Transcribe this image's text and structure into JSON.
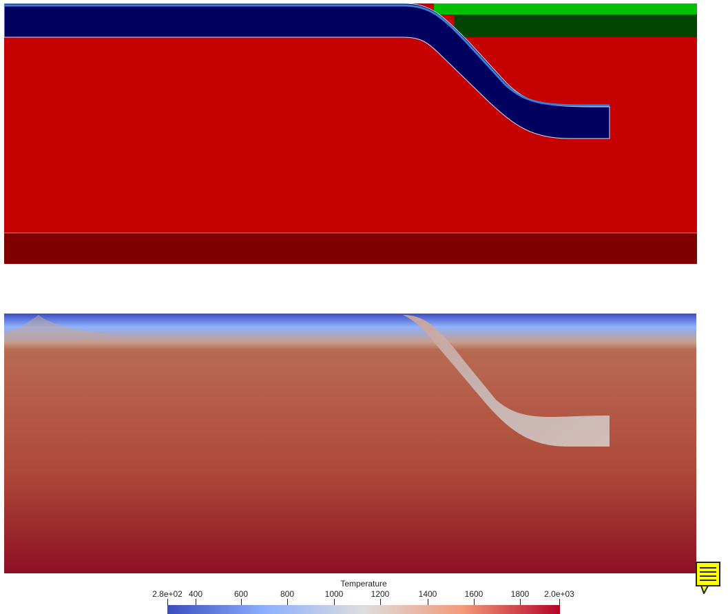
{
  "colorbar": {
    "title": "Temperature",
    "ticks": [
      "2.8e+02",
      "400",
      "600",
      "800",
      "1000",
      "1200",
      "1400",
      "1600",
      "1800",
      "2.0e+03"
    ],
    "range": [
      280,
      2000
    ],
    "colormap": [
      "#3b4cc0",
      "#8db0fe",
      "#dddddd",
      "#f49a7b",
      "#b40426"
    ]
  },
  "material_colors": {
    "crust_top": "#00c000",
    "overriding_plate": "#004400",
    "slab": "#00005f",
    "mantle": "#c40000",
    "lower_mantle": "#800000",
    "slab_edge": "#3a7fd8"
  },
  "icons": {
    "note": "note-icon"
  }
}
